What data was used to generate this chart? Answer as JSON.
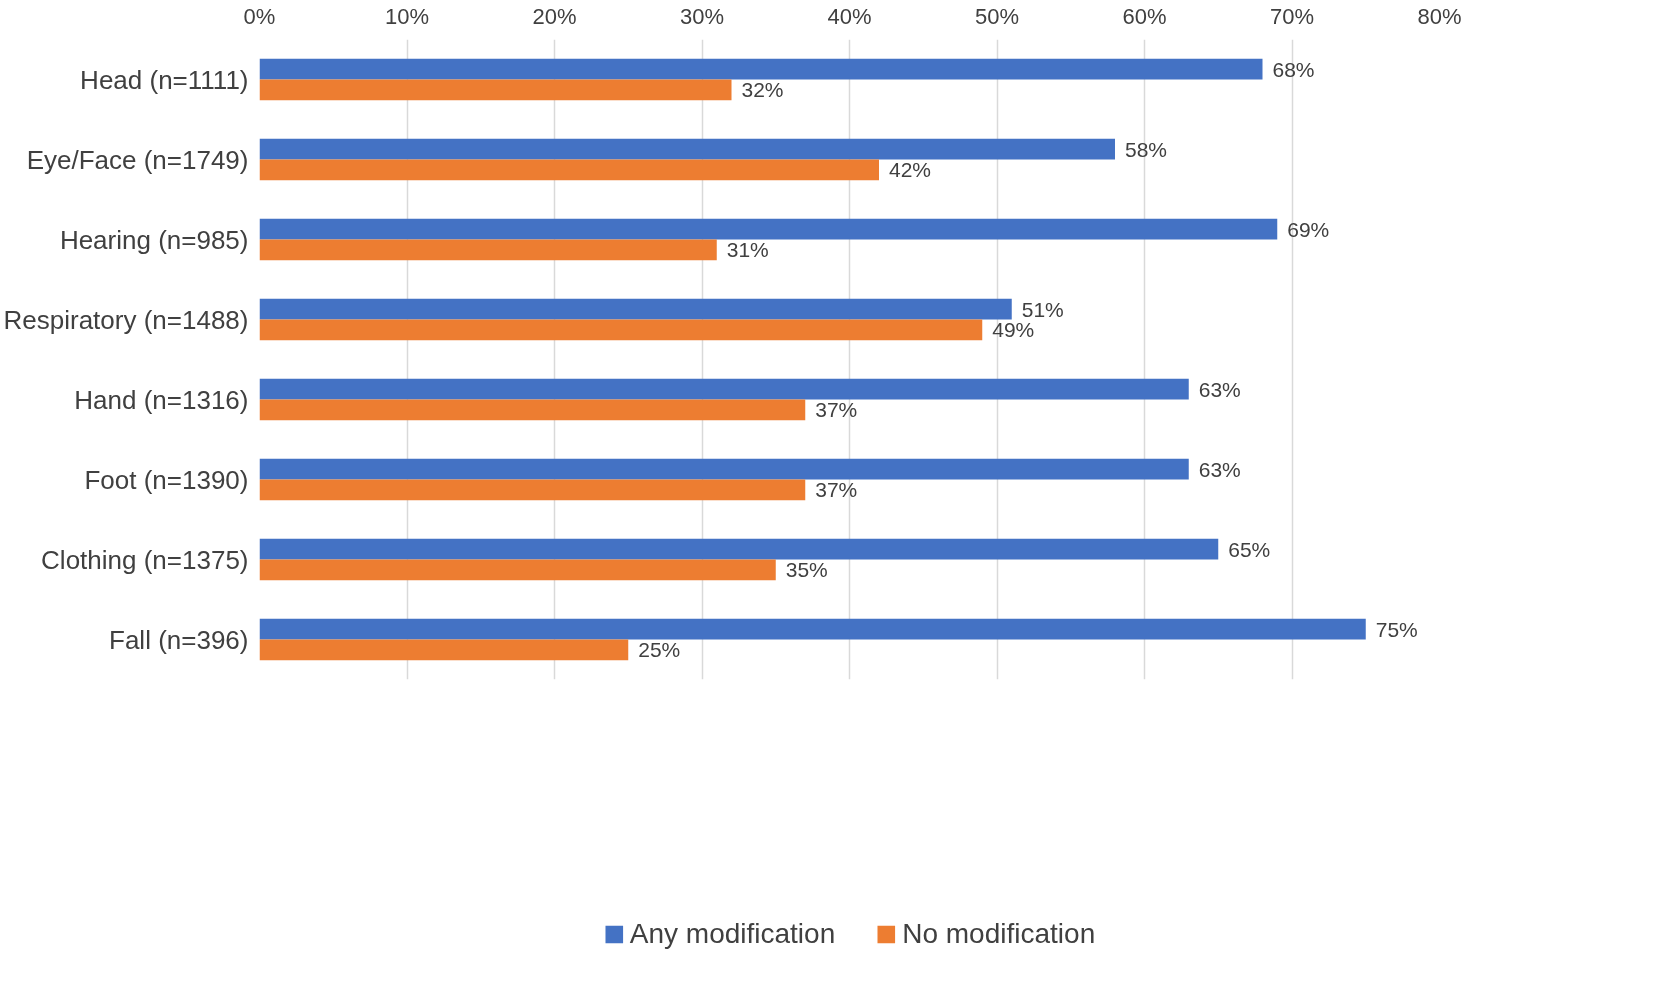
{
  "chart_data": {
    "type": "bar",
    "orientation": "horizontal",
    "categories": [
      "Head (n=1111)",
      "Eye/Face (n=1749)",
      "Hearing (n=985)",
      "Respiratory (n=1488)",
      "Hand (n=1316)",
      "Foot (n=1390)",
      "Clothing (n=1375)",
      "Fall (n=396)"
    ],
    "series": [
      {
        "name": "Any modification",
        "color": "#4472c4",
        "values": [
          68,
          58,
          69,
          51,
          63,
          63,
          65,
          75
        ],
        "value_labels": [
          "68%",
          "58%",
          "69%",
          "51%",
          "63%",
          "63%",
          "65%",
          "75%"
        ]
      },
      {
        "name": "No modification",
        "color": "#ed7d31",
        "values": [
          32,
          42,
          31,
          49,
          37,
          37,
          35,
          25
        ],
        "value_labels": [
          "32%",
          "42%",
          "31%",
          "49%",
          "37%",
          "37%",
          "35%",
          "25%"
        ]
      }
    ],
    "xlim": [
      0,
      80
    ],
    "xticks": [
      {
        "value": 0,
        "label": "0%"
      },
      {
        "value": 10,
        "label": "10%"
      },
      {
        "value": 20,
        "label": "20%"
      },
      {
        "value": 30,
        "label": "30%"
      },
      {
        "value": 40,
        "label": "40%"
      },
      {
        "value": 50,
        "label": "50%"
      },
      {
        "value": 60,
        "label": "60%"
      },
      {
        "value": 70,
        "label": "70%"
      },
      {
        "value": 80,
        "label": "80%"
      }
    ],
    "grid": "x",
    "legend": "bottom"
  }
}
